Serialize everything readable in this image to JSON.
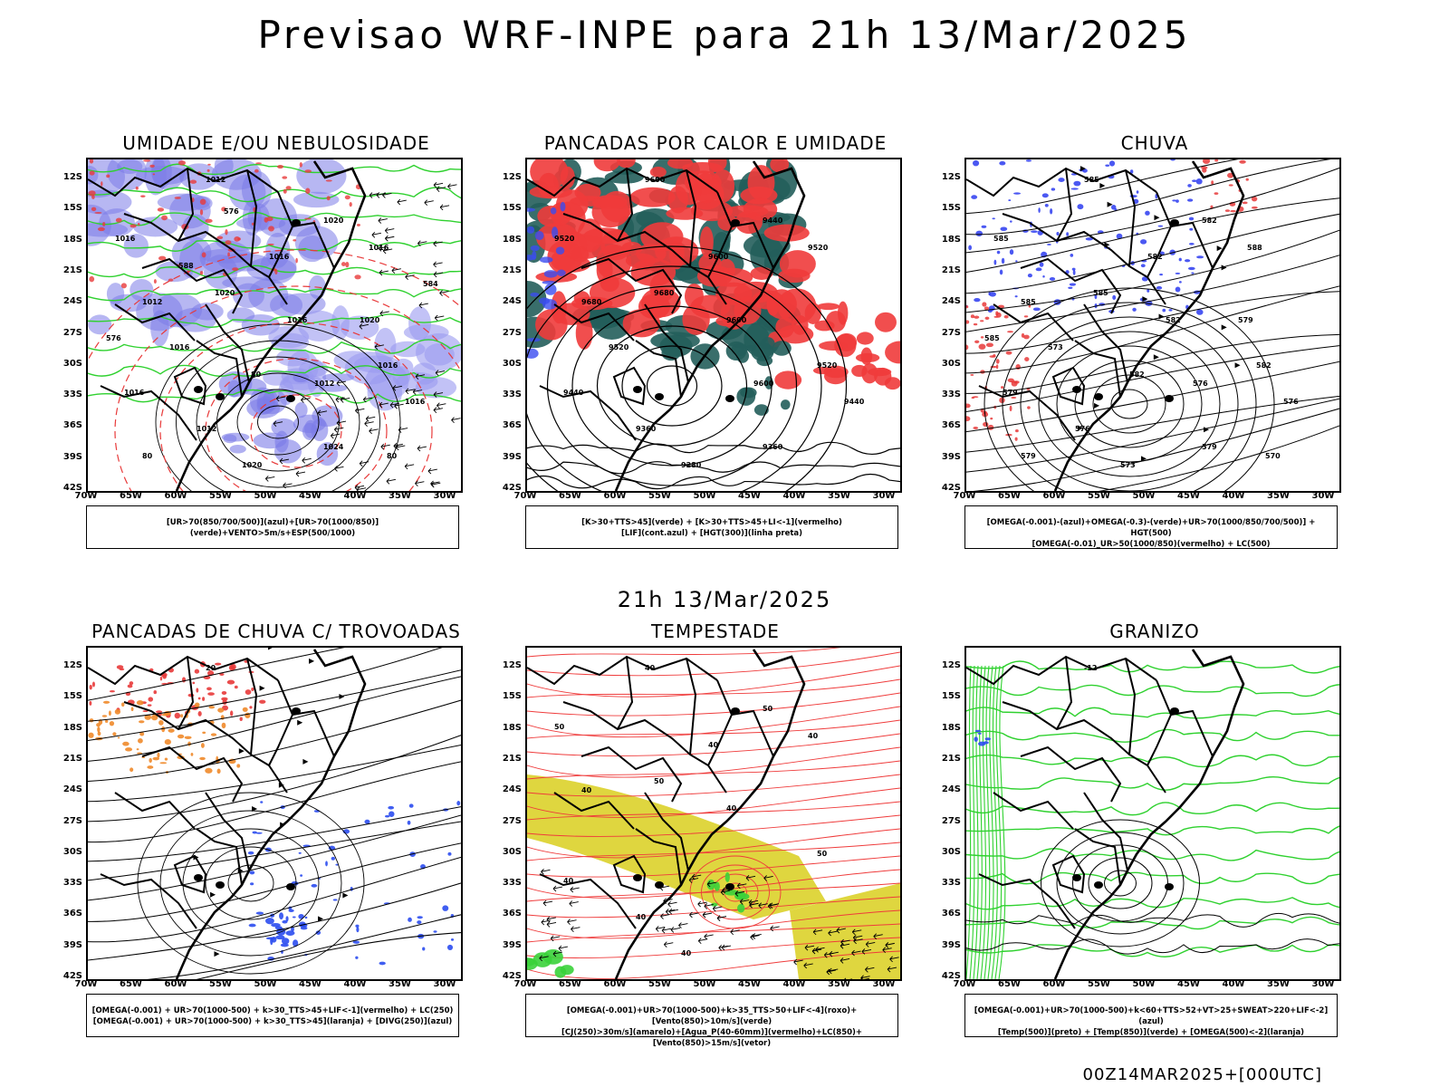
{
  "title": "Previsao WRF-INPE  para 21h 13/Mar/2025",
  "subtitle": "21h 13/Mar/2025",
  "footer": "00Z14MAR2025+[000UTC]",
  "lat_labels": [
    "12S",
    "15S",
    "18S",
    "21S",
    "24S",
    "27S",
    "30S",
    "33S",
    "36S",
    "39S",
    "42S"
  ],
  "lon_labels": [
    "70W",
    "65W",
    "60W",
    "55W",
    "50W",
    "45W",
    "40W",
    "35W",
    "30W"
  ],
  "panels": [
    {
      "title": "UMIDADE E/OU NEBULOSIDADE",
      "legend": [
        "[UR>70(850/700/500)](azul)+[UR>70(1000/850)](verde)+VENTO>5m/s+ESP(500/1000)"
      ],
      "labels": [
        "1012",
        "1016",
        "1020",
        "1016",
        "1016",
        "1012",
        "1020",
        "1016",
        "1016",
        "1016",
        "1012",
        "1020",
        "1024",
        "1016",
        "1016",
        "1012",
        "1020",
        "80",
        "80",
        "80",
        "576",
        "576",
        "584",
        "588"
      ]
    },
    {
      "title": "PANCADAS POR CALOR E UMIDADE",
      "legend": [
        "[K>30+TTS>45](verde) + [K>30+TTS>45+LI<-1](vermelho)",
        "[LIF](cont.azul) + [HGT(300)](linha preta)"
      ],
      "labels": [
        "9600",
        "9520",
        "9440",
        "9520",
        "9600",
        "9680",
        "9680",
        "9600",
        "9520",
        "9440",
        "9360",
        "9280",
        "9360",
        "9440",
        "9520",
        "9600"
      ]
    },
    {
      "title": "CHUVA",
      "legend": [
        "[OMEGA(-0.001)-(azul)+OMEGA(-0.3)-(verde)+UR>70(1000/850/700/500)] + HGT(500)",
        "[OMEGA(-0.01)_UR>50(1000/850)(vermelho) + LC(500)"
      ],
      "labels": [
        "585",
        "585",
        "582",
        "588",
        "582",
        "585",
        "585",
        "582",
        "582",
        "579",
        "576",
        "573",
        "579",
        "576",
        "573",
        "576",
        "579",
        "582",
        "579",
        "570",
        "585"
      ]
    },
    {
      "title": "PANCADAS DE CHUVA C/ TROVOADAS",
      "legend": [
        "[OMEGA(-0.001) + UR>70(1000-500) + k>30_TTS>45+LIF<-1](vermelho) + LC(250)",
        "[OMEGA(-0.001) + UR>70(1000-500) + k>30_TTS>45](laranja) + [DIVG(250)](azul)"
      ],
      "labels": [
        "20"
      ]
    },
    {
      "title": "TEMPESTADE",
      "legend": [
        "[OMEGA(-0.001)+UR>70(1000-500)+k>35_TTS>50+LIF<-4](roxo)+[Vento(850)>10m/s](verde)",
        "[CJ(250)>30m/s](amarelo)+[Agua_P(40-60mm)](vermelho)+LC(850)+[Vento(850)>15m/s](vetor)"
      ],
      "labels": [
        "40",
        "50",
        "50",
        "40",
        "40",
        "40",
        "50",
        "40",
        "50",
        "40",
        "40",
        "40"
      ]
    },
    {
      "title": "GRANIZO",
      "legend": [
        "[OMEGA(-0.001)+UR>70(1000-500)+k<60+TTS>52+VT>25+SWEAT>220+LIF<-2](azul)",
        "[Temp(500)](preto) + [Temp(850)](verde) + [OMEGA(500)<-2](laranja)"
      ],
      "labels": [
        "-12"
      ]
    }
  ]
}
